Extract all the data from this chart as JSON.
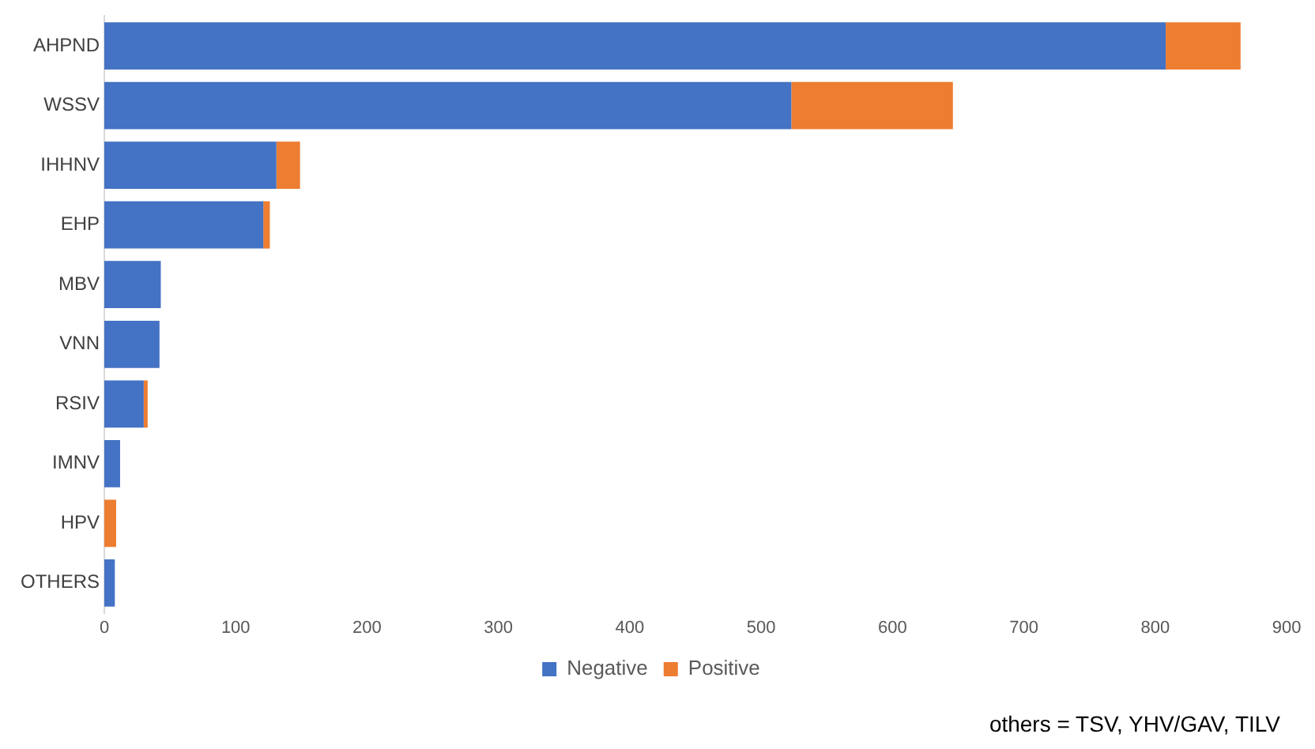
{
  "chart_data": {
    "type": "bar",
    "orientation": "horizontal",
    "stacked": true,
    "categories": [
      "AHPND",
      "WSSV",
      "IHHNV",
      "EHP",
      "MBV",
      "VNN",
      "RSIV",
      "IMNV",
      "HPV",
      "OTHERS"
    ],
    "series": [
      {
        "name": "Negative",
        "color": "#4472c4",
        "values": [
          808,
          523,
          131,
          121,
          43,
          42,
          30,
          12,
          0,
          8
        ]
      },
      {
        "name": "Positive",
        "color": "#ed7d31",
        "values": [
          57,
          123,
          18,
          5,
          0,
          0,
          3,
          0,
          9,
          0
        ]
      }
    ],
    "xlim": [
      0,
      900
    ],
    "xticks": [
      0,
      100,
      200,
      300,
      400,
      500,
      600,
      700,
      800,
      900
    ],
    "grid": false,
    "legend": "bottom",
    "annotations": [
      "others = TSV, YHV/GAV, TILV"
    ]
  }
}
